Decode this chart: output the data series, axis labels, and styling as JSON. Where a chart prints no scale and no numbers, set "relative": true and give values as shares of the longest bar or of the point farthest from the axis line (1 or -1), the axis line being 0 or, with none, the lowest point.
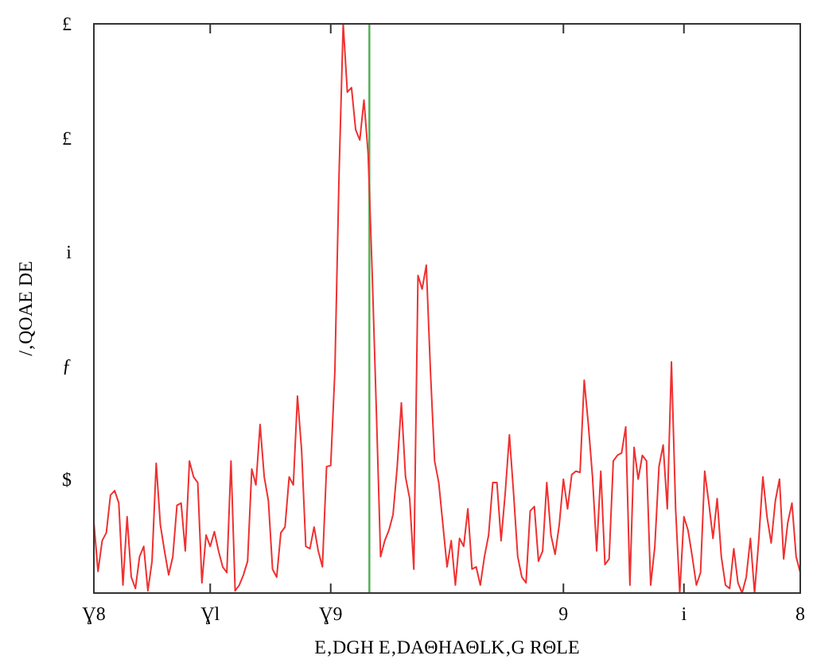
{
  "chart_data": {
    "type": "line",
    "xlabel": "E‚DGH E‚DAΘHAΘLK‚G RΘLE",
    "ylabel": "/‚QOAE DE",
    "relative": true,
    "categories": [
      "Ɣ8",
      null,
      null,
      null,
      null,
      null,
      null,
      null,
      null,
      null,
      null,
      null,
      null,
      null,
      null,
      null,
      null,
      null,
      null,
      null,
      null,
      null,
      null,
      null,
      null,
      null,
      null,
      null,
      "Ɣl",
      null,
      null,
      null,
      null,
      null,
      null,
      null,
      null,
      null,
      null,
      null,
      null,
      null,
      null,
      null,
      null,
      null,
      null,
      null,
      null,
      null,
      null,
      null,
      null,
      null,
      null,
      null,
      null,
      "Ɣ9",
      null,
      null,
      null,
      null,
      null,
      null,
      null,
      null,
      null,
      null,
      null,
      null,
      null,
      null,
      null,
      null,
      null,
      null,
      null,
      null,
      null,
      null,
      null,
      null,
      null,
      null,
      null,
      null,
      null,
      null,
      null,
      null,
      null,
      null,
      null,
      null,
      null,
      null,
      null,
      null,
      null,
      null,
      null,
      null,
      null,
      null,
      null,
      null,
      null,
      null,
      null,
      null,
      null,
      null,
      null,
      "9",
      null,
      null,
      null,
      null,
      null,
      null,
      null,
      null,
      null,
      null,
      null,
      null,
      null,
      null,
      null,
      null,
      null,
      null,
      null,
      null,
      null,
      null,
      null,
      null,
      null,
      null,
      null,
      null,
      "i",
      null,
      null,
      null,
      null,
      null,
      null,
      null,
      null,
      null,
      null,
      null,
      null,
      null,
      null,
      null,
      null,
      null,
      null,
      null,
      null,
      null,
      null,
      null,
      null,
      null,
      null,
      null,
      "8"
    ],
    "annotations": [
      "£",
      "£",
      "i",
      "ƒ",
      "$"
    ],
    "grid": false,
    "marker": "none",
    "line_style": "solid",
    "series": [
      {
        "color": "#f03030",
        "values": [
          0.124,
          0.038,
          0.092,
          0.106,
          0.172,
          0.18,
          0.158,
          0.014,
          0.134,
          0.028,
          0.008,
          0.064,
          0.082,
          0.004,
          0.056,
          0.228,
          0.12,
          0.074,
          0.032,
          0.064,
          0.154,
          0.158,
          0.074,
          0.232,
          0.204,
          0.194,
          0.018,
          0.102,
          0.082,
          0.108,
          0.074,
          0.046,
          0.036,
          0.232,
          0.004,
          0.014,
          0.032,
          0.056,
          0.218,
          0.19,
          0.296,
          0.204,
          0.162,
          0.042,
          0.028,
          0.106,
          0.116,
          0.204,
          0.19,
          0.346,
          0.25,
          0.082,
          0.078,
          0.116,
          0.074,
          0.046,
          0.222,
          0.224,
          0.39,
          0.734,
          1,
          0.88,
          0.888,
          0.814,
          0.796,
          0.866,
          0.772,
          0.558,
          0.316,
          0.064,
          0.092,
          0.11,
          0.138,
          0.222,
          0.334,
          0.204,
          0.166,
          0.042,
          0.558,
          0.534,
          0.576,
          0.39,
          0.232,
          0.194,
          0.12,
          0.046,
          0.092,
          0.014,
          0.096,
          0.082,
          0.148,
          0.042,
          0.046,
          0.014,
          0.064,
          0.102,
          0.194,
          0.194,
          0.092,
          0.176,
          0.278,
          0.176,
          0.064,
          0.028,
          0.018,
          0.144,
          0.152,
          0.056,
          0.074,
          0.194,
          0.102,
          0.068,
          0.12,
          0.2,
          0.148,
          0.208,
          0.214,
          0.212,
          0.374,
          0.296,
          0.204,
          0.074,
          0.214,
          0.05,
          0.06,
          0.232,
          0.242,
          0.246,
          0.292,
          0.014,
          0.256,
          0.2,
          0.242,
          0.232,
          0.014,
          0.082,
          0.222,
          0.26,
          0.148,
          0.406,
          0.148,
          0,
          0.134,
          0.11,
          0.064,
          0.014,
          0.036,
          0.214,
          0.158,
          0.096,
          0.166,
          0.064,
          0.014,
          0.008,
          0.078,
          0.018,
          0,
          0.028,
          0.096,
          0,
          0.092,
          0.204,
          0.134,
          0.088,
          0.162,
          0.2,
          0.06,
          0.124,
          0.158,
          0.064,
          0.036
        ]
      }
    ]
  }
}
